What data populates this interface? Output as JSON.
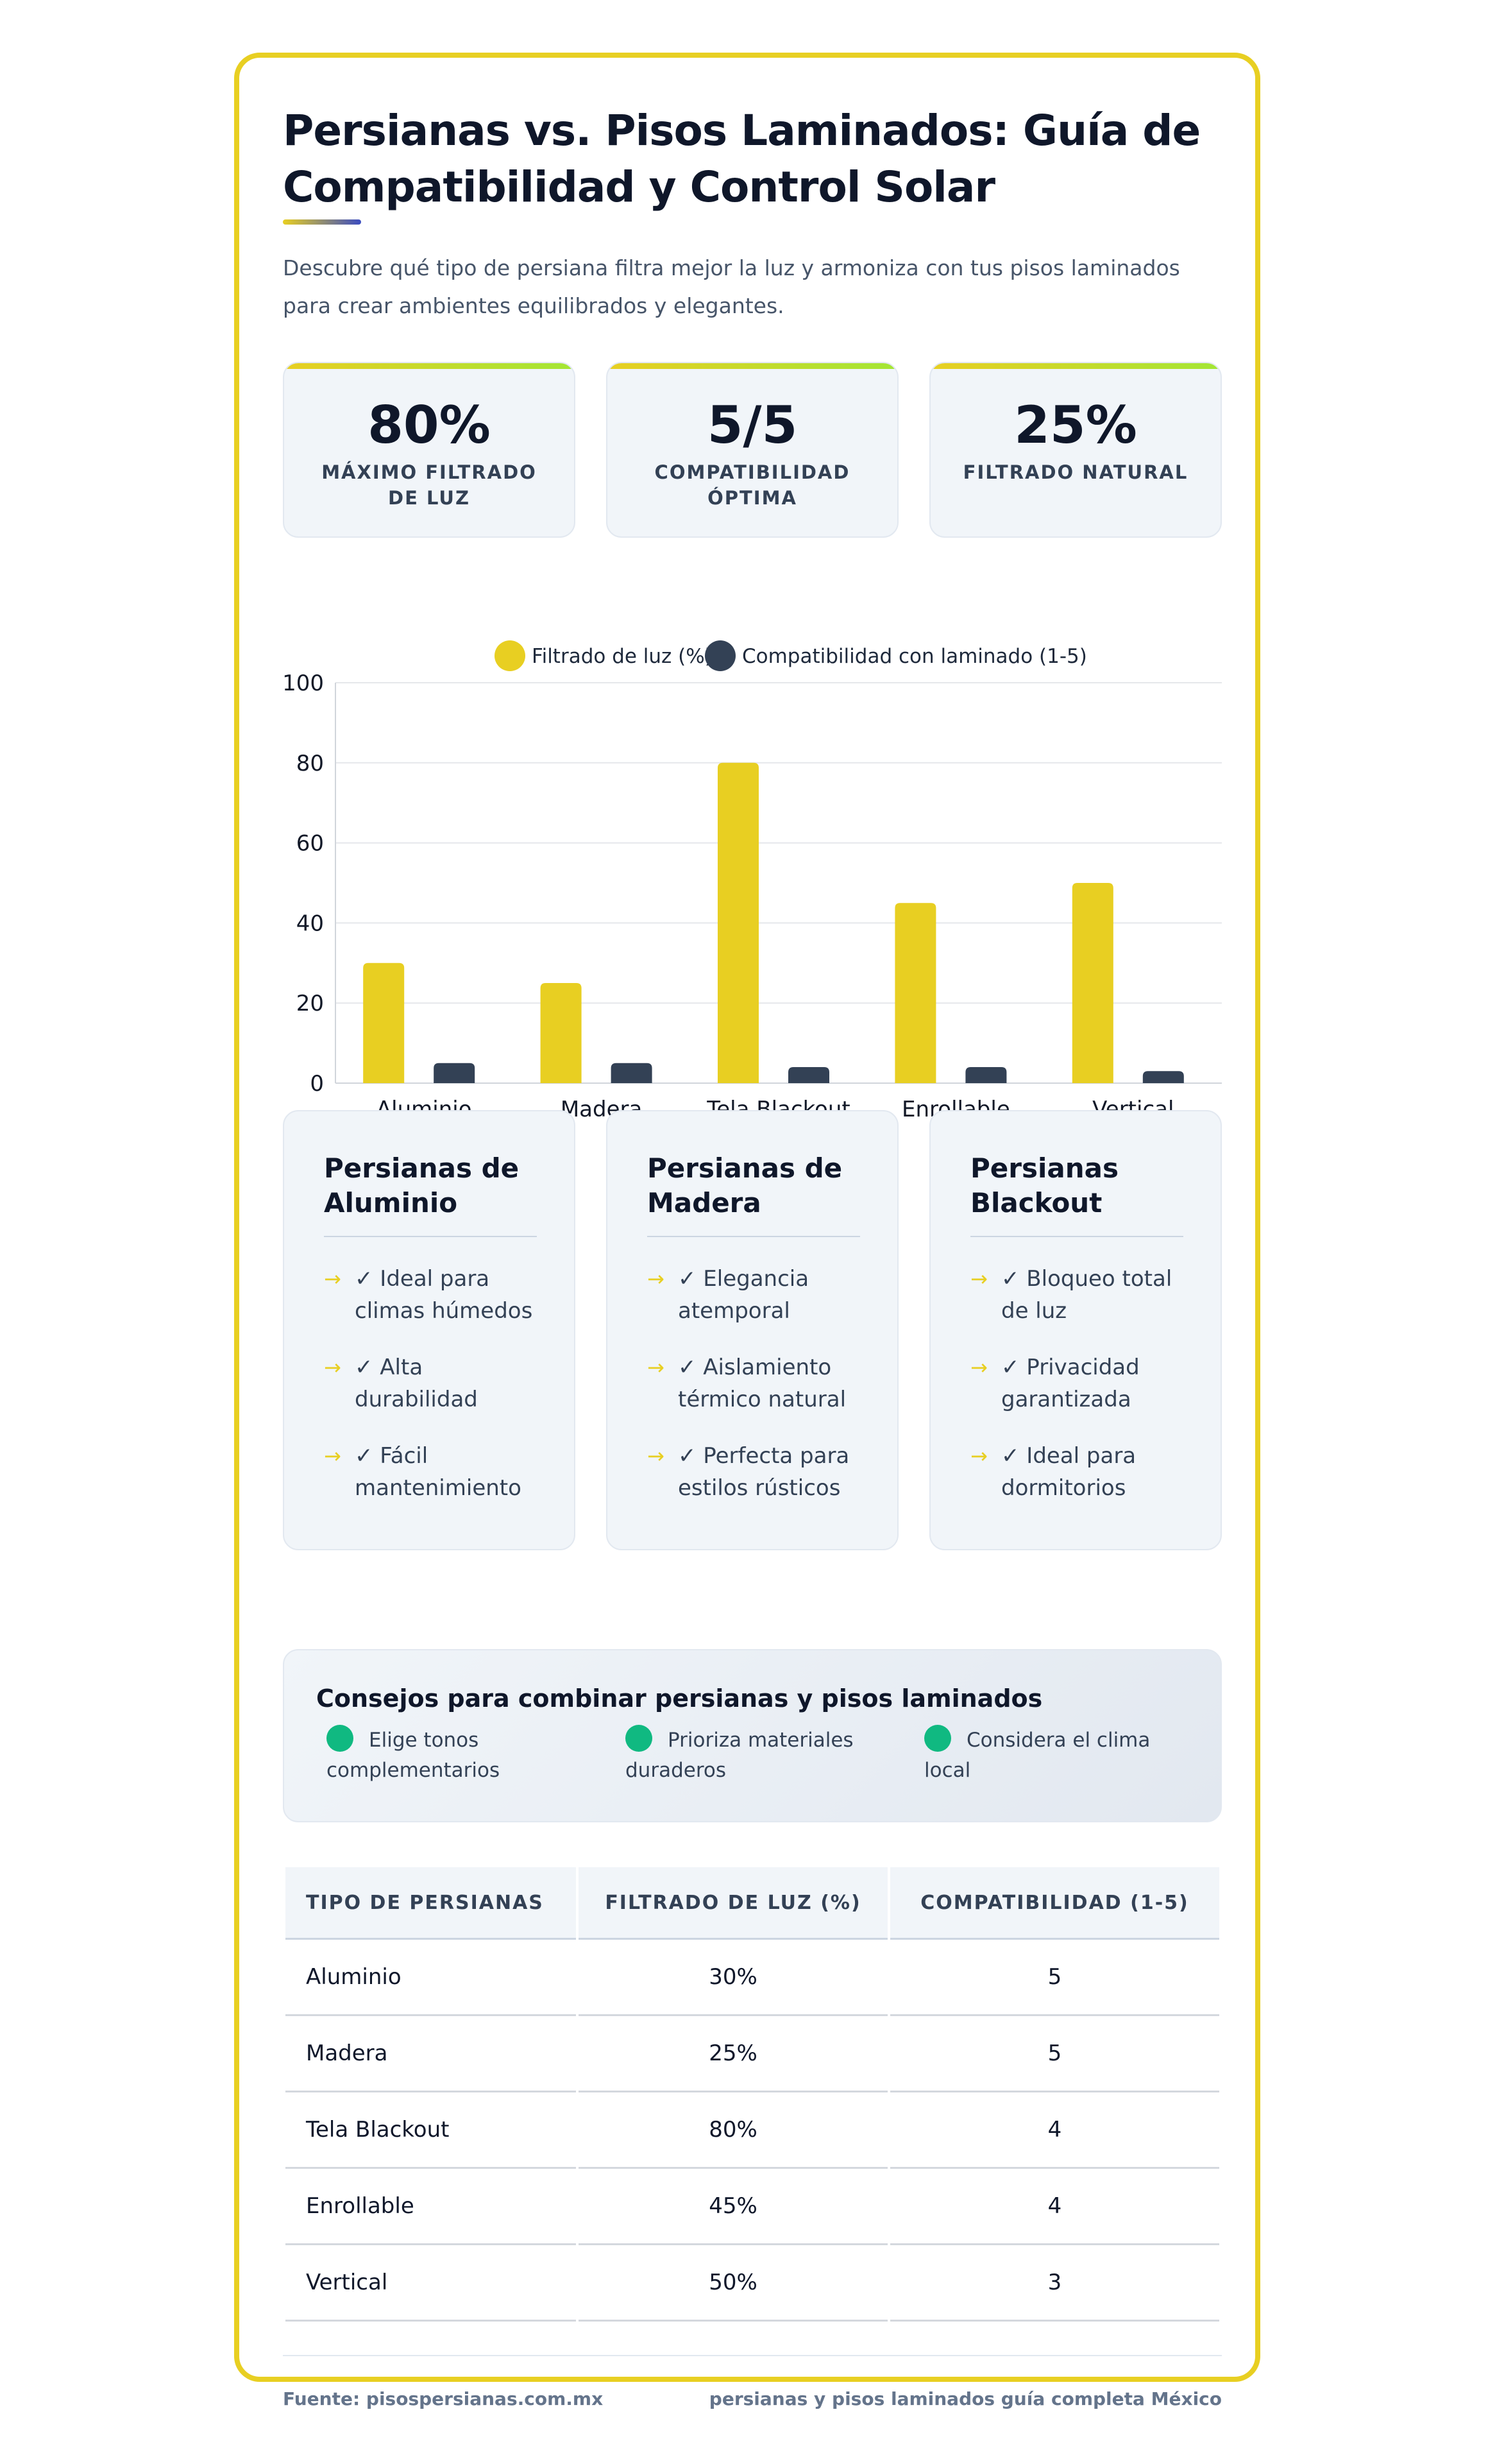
{
  "header": {
    "title": "Persianas vs. Pisos Laminados: Guía de Compatibilidad y Control Solar",
    "subtitle": "Descubre qué tipo de persiana filtra mejor la luz y armoniza con tus pisos laminados para crear ambientes equilibrados y elegantes."
  },
  "stats": [
    {
      "value": "80%",
      "label": "Máximo filtrado de luz"
    },
    {
      "value": "5/5",
      "label": "Compatibilidad óptima"
    },
    {
      "value": "25%",
      "label": "Filtrado natural"
    }
  ],
  "chart_data": {
    "type": "bar",
    "categories": [
      "Aluminio",
      "Madera",
      "Tela Blackout",
      "Enrollable",
      "Vertical"
    ],
    "series": [
      {
        "name": "Filtrado de luz (%)",
        "values": [
          30,
          25,
          80,
          45,
          50
        ],
        "color": "#e8cf22"
      },
      {
        "name": "Compatibilidad con laminado (1-5)",
        "values": [
          5,
          5,
          4,
          4,
          3
        ],
        "color": "#334155"
      }
    ],
    "ylim": [
      0,
      100
    ],
    "yticks": [
      0,
      20,
      40,
      60,
      80,
      100
    ],
    "grid": true,
    "legend": "top-center"
  },
  "features": [
    {
      "title": "Persianas de Aluminio",
      "items": [
        "✓ Ideal para climas húmedos",
        "✓ Alta durabilidad",
        "✓ Fácil mantenimiento"
      ]
    },
    {
      "title": "Persianas de Madera",
      "items": [
        "✓ Elegancia atemporal",
        "✓ Aislamiento térmico natural",
        "✓ Perfecta para estilos rústicos"
      ]
    },
    {
      "title": "Persianas Blackout",
      "items": [
        "✓ Bloqueo total de luz",
        "✓ Privacidad garantizada",
        "✓ Ideal para dormitorios"
      ]
    }
  ],
  "tips": {
    "title": "Consejos para combinar persianas y pisos laminados",
    "items": [
      "Elige tonos complementarios",
      "Prioriza materiales duraderos",
      "Considera el clima local"
    ]
  },
  "table": {
    "headers": [
      "Tipo de persianas",
      "Filtrado de luz (%)",
      "Compatibilidad (1-5)"
    ],
    "rows": [
      [
        "Aluminio",
        "30%",
        "5"
      ],
      [
        "Madera",
        "25%",
        "5"
      ],
      [
        "Tela Blackout",
        "80%",
        "4"
      ],
      [
        "Enrollable",
        "45%",
        "4"
      ],
      [
        "Vertical",
        "50%",
        "3"
      ]
    ]
  },
  "footer": {
    "source": "Fuente: pisospersianas.com.mx",
    "keywords": "persianas y pisos laminados guía completa México"
  }
}
